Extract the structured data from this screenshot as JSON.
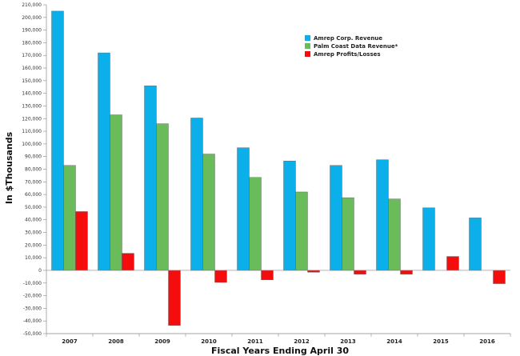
{
  "chart_data": {
    "type": "bar",
    "xlabel": "Fiscal Years Ending April 30",
    "ylabel": "In $Thousands",
    "ylim": [
      -50000,
      210000
    ],
    "ytick_step": 10000,
    "grid": false,
    "legend_position": "top-right",
    "categories": [
      "2007",
      "2008",
      "2009",
      "2010",
      "2011",
      "2012",
      "2013",
      "2014",
      "2015",
      "2016"
    ],
    "series": [
      {
        "name": "Amrep Corp. Revenue",
        "color": "#0BB0EA",
        "values": [
          205000,
          172000,
          146000,
          120500,
          97000,
          86500,
          83000,
          87500,
          49500,
          41500
        ]
      },
      {
        "name": "Palm Coast Data Revenue*",
        "color": "#6ABB5A",
        "values": [
          83000,
          123000,
          116000,
          92000,
          73500,
          62000,
          57500,
          56500,
          null,
          null
        ]
      },
      {
        "name": "Amrep Profits/Losses",
        "color": "#F50D0D",
        "values": [
          46500,
          13500,
          -43500,
          -9500,
          -7500,
          -1500,
          -3000,
          -3000,
          11000,
          -10500
        ]
      }
    ]
  }
}
